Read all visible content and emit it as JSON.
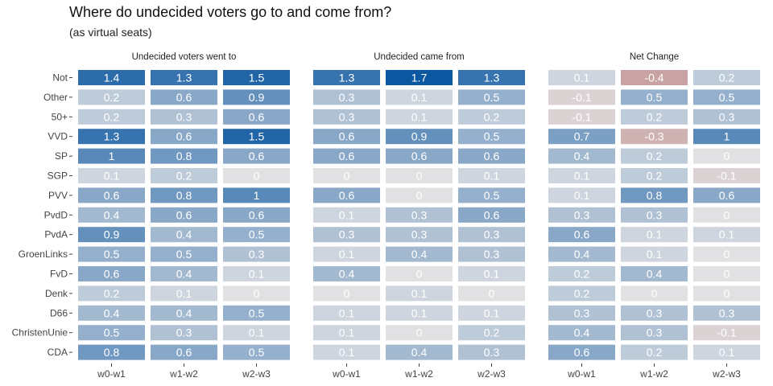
{
  "title": "Where do undecided voters go to and come from?",
  "subtitle": "(as virtual seats)",
  "chart_data": {
    "type": "heatmap",
    "rows": [
      "Not",
      "Other",
      "50+",
      "VVD",
      "SP",
      "SGP",
      "PVV",
      "PvdD",
      "PvdA",
      "GroenLinks",
      "FvD",
      "Denk",
      "D66",
      "ChristenUnie",
      "CDA"
    ],
    "columns": [
      "w0-w1",
      "w1-w2",
      "w2-w3"
    ],
    "colors": {
      "positive": "#0b57a0",
      "negative": "#c9a3a3",
      "neutral": "#e1e1e4",
      "text": "#ffffff"
    },
    "panels": [
      {
        "title": "Undecided voters went to",
        "values": [
          [
            1.4,
            1.3,
            1.5
          ],
          [
            0.2,
            0.6,
            0.9
          ],
          [
            0.2,
            0.3,
            0.6
          ],
          [
            1.3,
            0.6,
            1.5
          ],
          [
            1,
            0.8,
            0.6
          ],
          [
            0.1,
            0.2,
            0
          ],
          [
            0.6,
            0.8,
            1
          ],
          [
            0.4,
            0.6,
            0.6
          ],
          [
            0.9,
            0.4,
            0.5
          ],
          [
            0.5,
            0.5,
            0.3
          ],
          [
            0.6,
            0.4,
            0.1
          ],
          [
            0.2,
            0.1,
            0
          ],
          [
            0.4,
            0.4,
            0.5
          ],
          [
            0.5,
            0.3,
            0.1
          ],
          [
            0.8,
            0.6,
            0.5
          ]
        ]
      },
      {
        "title": "Undecided came from",
        "values": [
          [
            1.3,
            1.7,
            1.3
          ],
          [
            0.3,
            0.1,
            0.5
          ],
          [
            0.3,
            0.1,
            0.2
          ],
          [
            0.6,
            0.9,
            0.5
          ],
          [
            0.6,
            0.6,
            0.6
          ],
          [
            0,
            0,
            0.1
          ],
          [
            0.6,
            0,
            0.5
          ],
          [
            0.1,
            0.3,
            0.6
          ],
          [
            0.3,
            0.3,
            0.3
          ],
          [
            0.1,
            0.4,
            0.3
          ],
          [
            0.4,
            0,
            0.1
          ],
          [
            0,
            0.1,
            0
          ],
          [
            0.1,
            0.1,
            0.1
          ],
          [
            0.1,
            0,
            0.2
          ],
          [
            0.1,
            0.4,
            0.3
          ]
        ]
      },
      {
        "title": "Net Change",
        "values": [
          [
            0.1,
            -0.4,
            0.2
          ],
          [
            -0.1,
            0.5,
            0.5
          ],
          [
            -0.1,
            0.2,
            0.3
          ],
          [
            0.7,
            -0.3,
            1
          ],
          [
            0.4,
            0.2,
            0
          ],
          [
            0.1,
            0.2,
            -0.1
          ],
          [
            0.1,
            0.8,
            0.6
          ],
          [
            0.3,
            0.3,
            0
          ],
          [
            0.6,
            0.1,
            0.1
          ],
          [
            0.4,
            0.1,
            0
          ],
          [
            0.2,
            0.4,
            0
          ],
          [
            0.2,
            0,
            0
          ],
          [
            0.3,
            0.3,
            0.3
          ],
          [
            0.4,
            0.3,
            -0.1
          ],
          [
            0.6,
            0.2,
            0.1
          ]
        ]
      }
    ]
  }
}
